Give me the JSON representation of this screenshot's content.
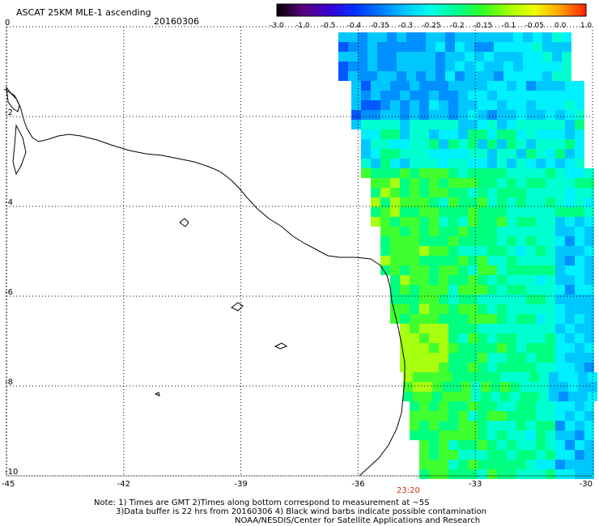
{
  "title": "ASCAT 25KM MLE-1 ascending",
  "date": "20160306",
  "colorbar": {
    "labels": [
      "-3.0",
      "-1.0",
      "-0.5",
      "-0.4",
      "-0.35",
      "-0.3",
      "-0.25",
      "-0.2",
      "-0.15",
      "-0.1",
      "-0.05",
      "0.0",
      "1.0"
    ],
    "colors": [
      "#000000",
      "#5a007a",
      "#3a00d0",
      "#0030ff",
      "#0078ff",
      "#00c8ff",
      "#00ffe8",
      "#00ff90",
      "#30ff20",
      "#a0ff00",
      "#f0ff00",
      "#ffa000",
      "#ff2000"
    ]
  },
  "axes": {
    "lon_ticks": [
      "-45",
      "-42",
      "-39",
      "-36",
      "-33",
      "-30"
    ],
    "lat_ticks": [
      "0",
      "-2",
      "-4",
      "-6",
      "-8",
      "-10"
    ],
    "lon_range": [
      -45,
      -30
    ],
    "lat_range": [
      -10,
      0
    ],
    "grid": true
  },
  "time_label": "23:20",
  "notes": [
    "Note: 1) Times are GMT 2)Times along bottom correspond to measurement at ~5S",
    "3)Data buffer is 22 hrs from 20160306 4) Black wind barbs indicate possible contamination",
    "NOAA/NESDIS/Center for Satellite Applications and Research"
  ]
}
